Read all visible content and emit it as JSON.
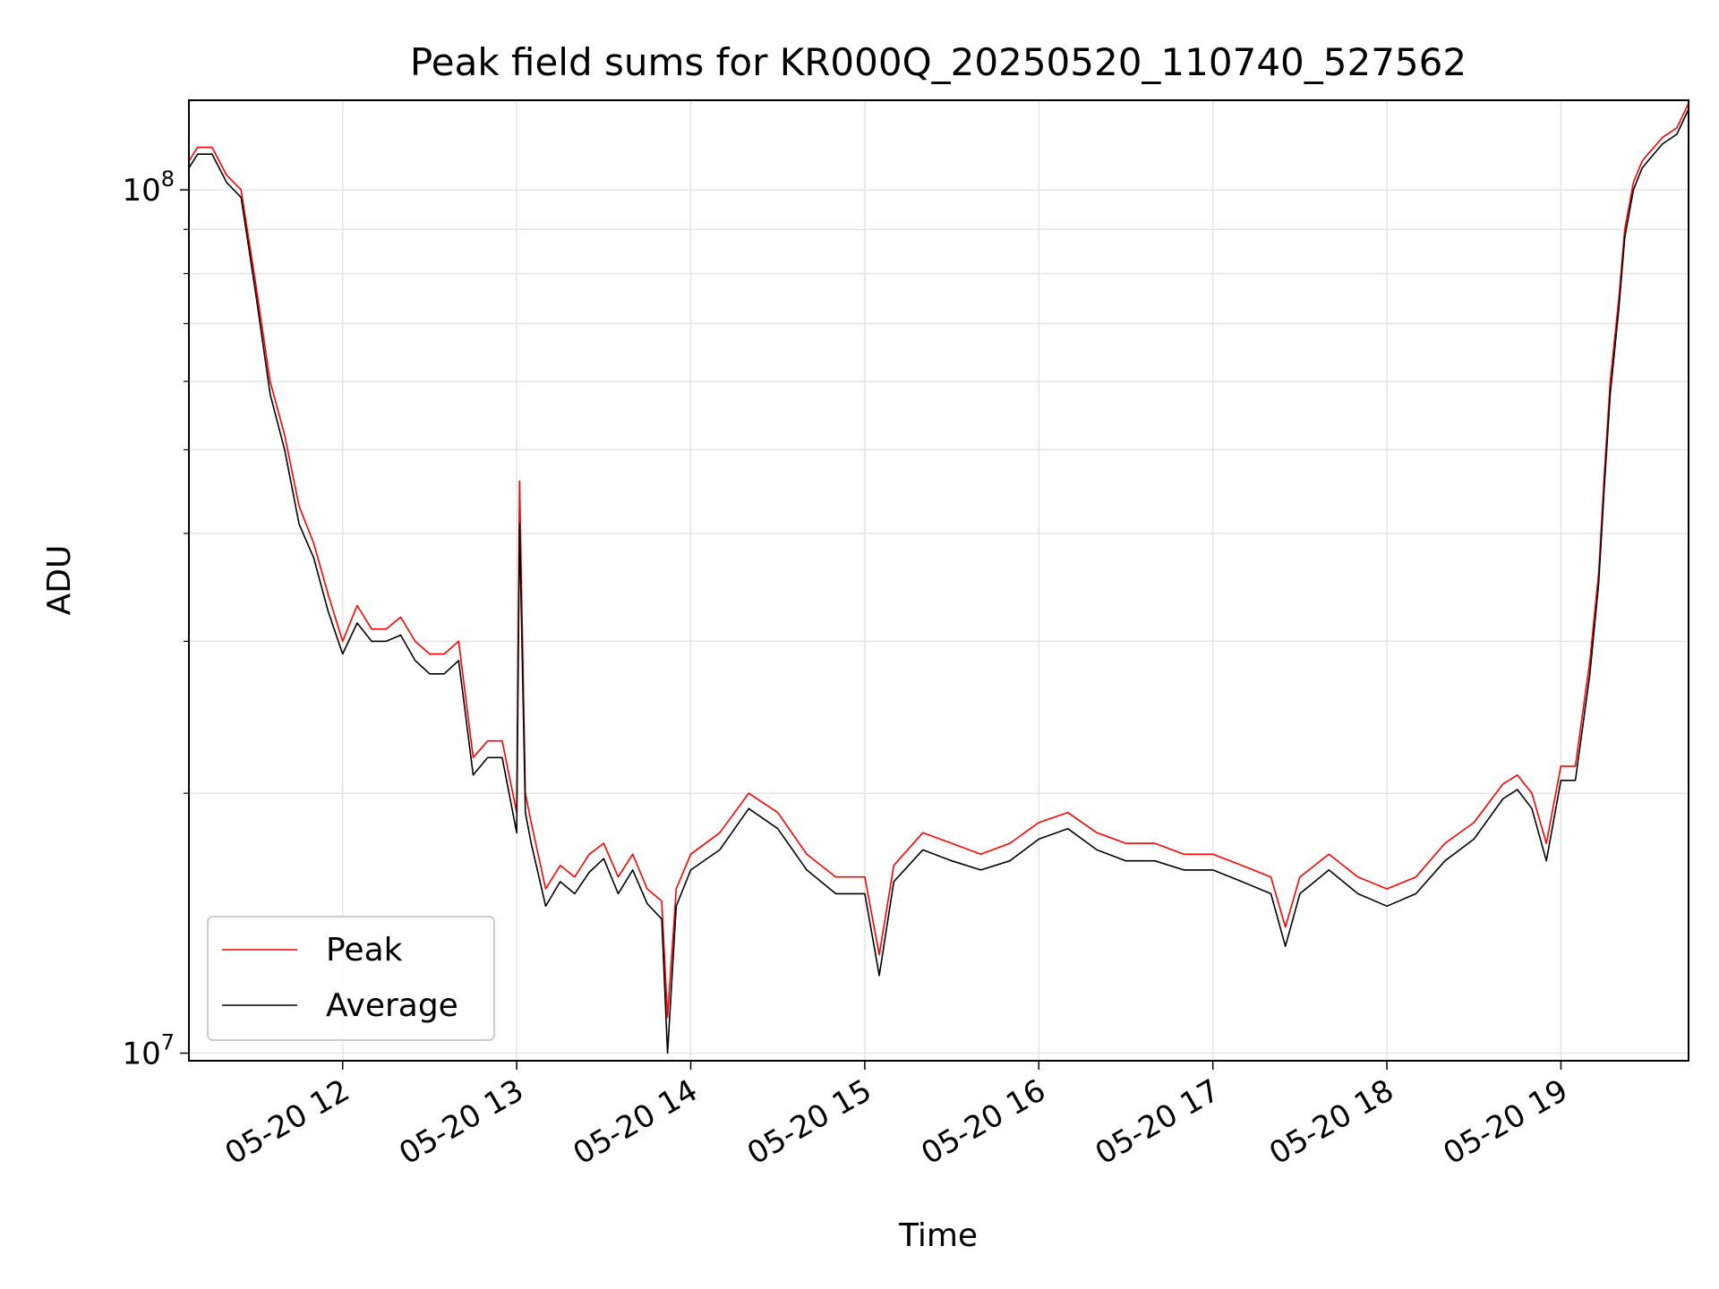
{
  "chart_data": {
    "type": "line",
    "title": "Peak field sums for KR000Q_20250520_110740_527562",
    "xlabel": "Time",
    "ylabel": "ADU",
    "yscale": "log",
    "ylim": [
      9800000,
      127000000
    ],
    "xlim": [
      "05-20 11:07",
      "05-20 19:44"
    ],
    "grid": true,
    "legend_position": "lower-left",
    "x_ticks": [
      "05-20 12",
      "05-20 13",
      "05-20 14",
      "05-20 15",
      "05-20 16",
      "05-20 17",
      "05-20 18",
      "05-20 19"
    ],
    "y_ticks": [
      {
        "base": "10",
        "exp": "7",
        "value": 10000000
      },
      {
        "base": "10",
        "exp": "8",
        "value": 100000000
      }
    ],
    "x": [
      "05-20 11:07",
      "05-20 11:10",
      "05-20 11:15",
      "05-20 11:20",
      "05-20 11:25",
      "05-20 11:30",
      "05-20 11:35",
      "05-20 11:40",
      "05-20 11:45",
      "05-20 11:50",
      "05-20 11:55",
      "05-20 12:00",
      "05-20 12:05",
      "05-20 12:10",
      "05-20 12:15",
      "05-20 12:20",
      "05-20 12:25",
      "05-20 12:30",
      "05-20 12:35",
      "05-20 12:40",
      "05-20 12:45",
      "05-20 12:50",
      "05-20 12:55",
      "05-20 13:00",
      "05-20 13:01",
      "05-20 13:03",
      "05-20 13:05",
      "05-20 13:10",
      "05-20 13:15",
      "05-20 13:20",
      "05-20 13:25",
      "05-20 13:30",
      "05-20 13:35",
      "05-20 13:40",
      "05-20 13:45",
      "05-20 13:50",
      "05-20 13:52",
      "05-20 13:55",
      "05-20 14:00",
      "05-20 14:10",
      "05-20 14:20",
      "05-20 14:30",
      "05-20 14:40",
      "05-20 14:50",
      "05-20 15:00",
      "05-20 15:05",
      "05-20 15:10",
      "05-20 15:20",
      "05-20 15:30",
      "05-20 15:40",
      "05-20 15:50",
      "05-20 16:00",
      "05-20 16:10",
      "05-20 16:20",
      "05-20 16:30",
      "05-20 16:40",
      "05-20 16:50",
      "05-20 17:00",
      "05-20 17:10",
      "05-20 17:20",
      "05-20 17:25",
      "05-20 17:30",
      "05-20 17:40",
      "05-20 17:50",
      "05-20 18:00",
      "05-20 18:10",
      "05-20 18:20",
      "05-20 18:30",
      "05-20 18:40",
      "05-20 18:45",
      "05-20 18:50",
      "05-20 18:55",
      "05-20 19:00",
      "05-20 19:05",
      "05-20 19:10",
      "05-20 19:13",
      "05-20 19:15",
      "05-20 19:17",
      "05-20 19:20",
      "05-20 19:22",
      "05-20 19:25",
      "05-20 19:28",
      "05-20 19:30",
      "05-20 19:35",
      "05-20 19:40",
      "05-20 19:44"
    ],
    "series": [
      {
        "name": "Peak",
        "color": "#ff0000",
        "values": [
          108000000,
          112000000,
          112000000,
          104000000,
          100000000,
          78000000,
          60000000,
          52000000,
          43000000,
          39000000,
          34000000,
          30000000,
          33000000,
          31000000,
          31000000,
          32000000,
          30000000,
          29000000,
          29000000,
          30000000,
          22000000,
          23000000,
          23000000,
          19000000,
          46000000,
          20000000,
          18500000,
          15500000,
          16500000,
          16000000,
          17000000,
          17500000,
          16000000,
          17000000,
          15500000,
          15000000,
          11000000,
          15500000,
          17000000,
          18000000,
          20000000,
          19000000,
          17000000,
          16000000,
          16000000,
          13000000,
          16500000,
          18000000,
          17500000,
          17000000,
          17500000,
          18500000,
          19000000,
          18000000,
          17500000,
          17500000,
          17000000,
          17000000,
          16500000,
          16000000,
          14000000,
          16000000,
          17000000,
          16000000,
          15500000,
          16000000,
          17500000,
          18500000,
          20500000,
          21000000,
          20000000,
          17500000,
          21500000,
          21500000,
          28500000,
          36000000,
          47000000,
          60000000,
          75000000,
          90000000,
          102000000,
          108000000,
          110000000,
          115000000,
          118000000,
          126000000
        ]
      },
      {
        "name": "Average",
        "color": "#000000",
        "values": [
          106000000,
          110000000,
          110000000,
          102000000,
          98000000,
          76000000,
          58000000,
          50000000,
          41000000,
          37500000,
          32500000,
          29000000,
          31500000,
          30000000,
          30000000,
          30500000,
          28500000,
          27500000,
          27500000,
          28500000,
          21000000,
          22000000,
          22000000,
          18000000,
          41000000,
          19000000,
          17500000,
          14800000,
          15800000,
          15300000,
          16200000,
          16800000,
          15300000,
          16300000,
          14900000,
          14300000,
          10000000,
          14800000,
          16300000,
          17200000,
          19200000,
          18200000,
          16300000,
          15300000,
          15300000,
          12300000,
          15800000,
          17200000,
          16700000,
          16300000,
          16700000,
          17700000,
          18200000,
          17200000,
          16700000,
          16700000,
          16300000,
          16300000,
          15800000,
          15300000,
          13300000,
          15300000,
          16300000,
          15300000,
          14800000,
          15300000,
          16700000,
          17700000,
          19700000,
          20200000,
          19200000,
          16700000,
          20700000,
          20700000,
          27500000,
          35000000,
          45500000,
          58000000,
          73000000,
          88000000,
          100000000,
          106000000,
          108000000,
          113000000,
          116000000,
          124000000
        ]
      }
    ]
  }
}
